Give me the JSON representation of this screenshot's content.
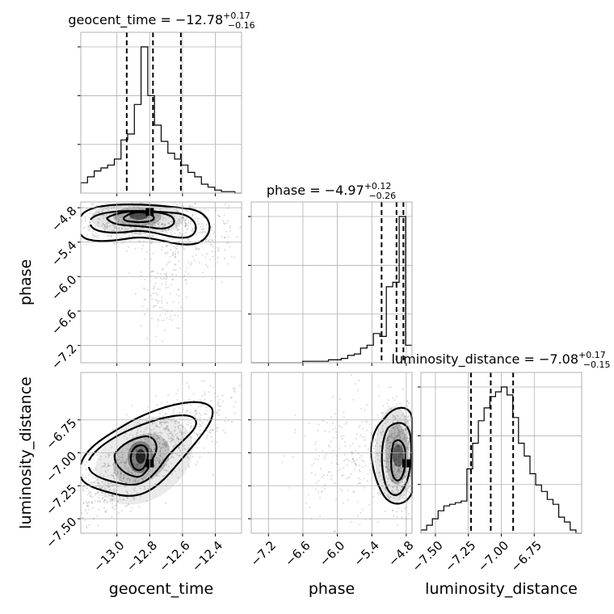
{
  "chart_data": {
    "type": "corner",
    "parameters": [
      "geocent_time",
      "phase",
      "luminosity_distance"
    ],
    "titles": [
      {
        "param": "geocent_time",
        "text": "geocent_time = −12.78",
        "plus": "+0.17",
        "minus": "−0.16"
      },
      {
        "param": "phase",
        "text": "phase = −4.97",
        "plus": "+0.12",
        "minus": "−0.26"
      },
      {
        "param": "luminosity_distance",
        "text": "luminosity_distance = −7.08",
        "plus": "+0.17",
        "minus": "−0.15"
      }
    ],
    "axis_labels": {
      "geocent_time": "geocent_time",
      "phase": "phase",
      "luminosity_distance": "luminosity_distance"
    },
    "ranges": {
      "geocent_time": [
        -13.22,
        -12.24
      ],
      "phase": [
        -7.5,
        -4.7
      ],
      "luminosity_distance": [
        -7.61,
        -6.39
      ]
    },
    "ticks": {
      "geocent_time": {
        "values": [
          -13.0,
          -12.8,
          -12.6,
          -12.4
        ],
        "labels": [
          "−13.0",
          "−12.8",
          "−12.6",
          "−12.4"
        ]
      },
      "phase": {
        "values": [
          -7.2,
          -6.6,
          -6.0,
          -5.4,
          -4.8
        ],
        "labels": [
          "−7.2",
          "−6.6",
          "−6.0",
          "−5.4",
          "−4.8"
        ]
      },
      "luminosity_distance": {
        "values": [
          -7.5,
          -7.25,
          -7.0,
          -6.75
        ],
        "labels": [
          "−7.50",
          "−7.25",
          "−7.00",
          "−6.75"
        ]
      }
    },
    "quantiles": {
      "geocent_time": [
        -12.94,
        -12.78,
        -12.61
      ],
      "phase": [
        -5.23,
        -4.97,
        -4.85
      ],
      "luminosity_distance": [
        -7.23,
        -7.08,
        -6.91
      ]
    },
    "histograms": {
      "geocent_time": [
        7,
        11,
        15,
        17,
        19,
        23,
        36,
        40,
        60,
        99,
        66,
        46,
        35,
        27,
        23,
        19,
        14,
        11,
        6,
        4,
        2,
        1,
        1,
        0
      ],
      "phase": [
        0,
        0,
        0,
        0,
        0,
        0,
        0,
        0,
        1,
        1,
        1,
        1,
        2,
        2,
        3,
        5,
        6,
        10,
        12,
        20,
        18,
        52,
        55,
        100,
        12
      ],
      "luminosity_distance": [
        2,
        5,
        9,
        14,
        17,
        18,
        19,
        20,
        40,
        56,
        70,
        78,
        85,
        88,
        91,
        86,
        72,
        56,
        48,
        37,
        30,
        26,
        21,
        18,
        10,
        7,
        2,
        0
      ]
    },
    "peaks_2d": {
      "phase_vs_geocent_time": [
        -12.8,
        -4.87
      ],
      "luminosity_distance_vs_geocent_time": [
        -12.8,
        -7.08
      ],
      "luminosity_distance_vs_phase": [
        -4.8,
        -7.08
      ]
    },
    "grid": true,
    "legend": "none"
  }
}
